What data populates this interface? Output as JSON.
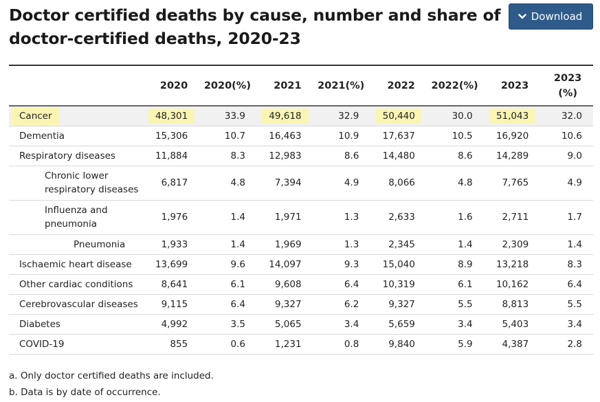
{
  "title": "Doctor certified deaths by cause, number and share of doctor-certified deaths, 2020-23",
  "download_label": "Download",
  "icons": {
    "download": "chevron-down-icon"
  },
  "colors": {
    "button": "#2e5b8a",
    "highlight": "#fbf5b4",
    "highlight_row": "#f1f1f1"
  },
  "table": {
    "headers": [
      "",
      "2020",
      "2020(%)",
      "2021",
      "2021(%)",
      "2022",
      "2022(%)",
      "2023",
      "2023 (%)"
    ],
    "rows": [
      {
        "cause": "Cancer",
        "level": 0,
        "highlight": true,
        "values": [
          "48,301",
          "33.9",
          "49,618",
          "32.9",
          "50,440",
          "30.0",
          "51,043",
          "32.0"
        ]
      },
      {
        "cause": "Dementia",
        "level": 0,
        "values": [
          "15,306",
          "10.7",
          "16,463",
          "10.9",
          "17,637",
          "10.5",
          "16,920",
          "10.6"
        ]
      },
      {
        "cause": "Respiratory diseases",
        "level": 0,
        "values": [
          "11,884",
          "8.3",
          "12,983",
          "8.6",
          "14,480",
          "8.6",
          "14,289",
          "9.0"
        ]
      },
      {
        "cause": "Chronic lower respiratory diseases",
        "level": 1,
        "values": [
          "6,817",
          "4.8",
          "7,394",
          "4.9",
          "8,066",
          "4.8",
          "7,765",
          "4.9"
        ]
      },
      {
        "cause": "Influenza and pneumonia",
        "level": 1,
        "values": [
          "1,976",
          "1.4",
          "1,971",
          "1.3",
          "2,633",
          "1.6",
          "2,711",
          "1.7"
        ]
      },
      {
        "cause": "Pneumonia",
        "level": 2,
        "values": [
          "1,933",
          "1.4",
          "1,969",
          "1.3",
          "2,345",
          "1.4",
          "2,309",
          "1.4"
        ]
      },
      {
        "cause": "Ischaemic heart disease",
        "level": 0,
        "values": [
          "13,699",
          "9.6",
          "14,097",
          "9.3",
          "15,040",
          "8.9",
          "13,218",
          "8.3"
        ]
      },
      {
        "cause": "Other cardiac conditions",
        "level": 0,
        "values": [
          "8,641",
          "6.1",
          "9,608",
          "6.4",
          "10,319",
          "6.1",
          "10,162",
          "6.4"
        ]
      },
      {
        "cause": "Cerebrovascular diseases",
        "level": 0,
        "values": [
          "9,115",
          "6.4",
          "9,327",
          "6.2",
          "9,327",
          "5.5",
          "8,813",
          "5.5"
        ]
      },
      {
        "cause": "Diabetes",
        "level": 0,
        "values": [
          "4,992",
          "3.5",
          "5,065",
          "3.4",
          "5,659",
          "3.4",
          "5,403",
          "3.4"
        ]
      },
      {
        "cause": "COVID-19",
        "level": 0,
        "values": [
          "855",
          "0.6",
          "1,231",
          "0.8",
          "9,840",
          "5.9",
          "4,387",
          "2.8"
        ]
      }
    ]
  },
  "notes": [
    "a. Only doctor certified deaths are included.",
    "b. Data is by date of occurrence."
  ]
}
